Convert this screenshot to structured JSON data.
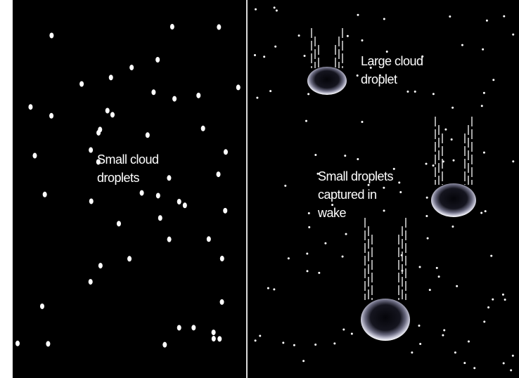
{
  "labels": {
    "small_cloud": [
      "Small cloud",
      "droplets"
    ],
    "large_cloud": [
      "Large cloud",
      "droplet"
    ],
    "captured": [
      "Small droplets",
      "captured in",
      "wake"
    ]
  }
}
